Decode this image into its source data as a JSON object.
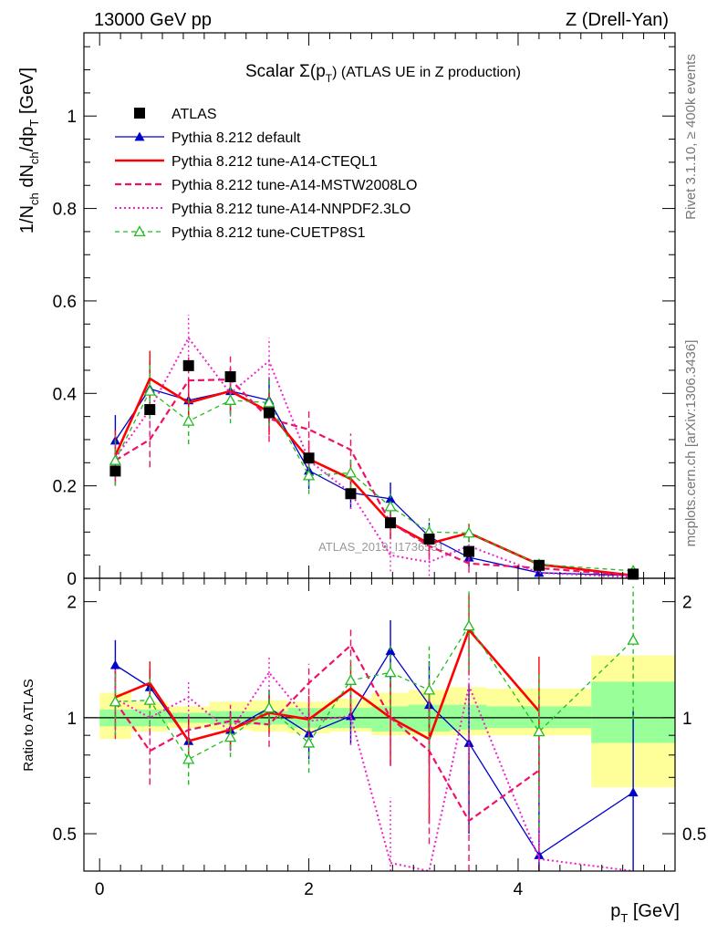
{
  "header": {
    "energy_label": "13000 GeV pp",
    "process_label": "Z (Drell-Yan)"
  },
  "side": {
    "rivet_label": "Rivet 3.1.10, ≥ 400k events",
    "mcplots_label": "mcplots.cern.ch [arXiv:1306.3436]"
  },
  "colors": {
    "atlas": "#000000",
    "default": "#0000cc",
    "a14_cteql1": "#ff0000",
    "a14_mstw": "#ee1166",
    "a14_nnpdf": "#ee22cc",
    "cuetp8s1": "#22bb22",
    "band_stat": "#99ff99",
    "band_total": "#ffff99"
  },
  "chart_data": [
    {
      "type": "line",
      "title_prefix": "Scalar Σ(p",
      "title_sub": "T",
      "title_suffix": ") (ATLAS UE in Z production)",
      "watermark": "ATLAS_2019_I1736531",
      "ylabel": "1/N_ch dN_ch/dp_T [GeV]",
      "ylabel_parts": [
        "1/N",
        "ch",
        " dN",
        "ch",
        "/dp",
        "T",
        " [GeV]"
      ],
      "xlim": [
        -0.15,
        5.5
      ],
      "ylim": [
        0,
        1.18
      ],
      "yticks": [
        0,
        0.2,
        0.4,
        0.6,
        0.8,
        1
      ],
      "ytick_labels": [
        "0",
        "0.2",
        "0.4",
        "0.6",
        "0.8",
        "1"
      ],
      "x": [
        0.15,
        0.48,
        0.85,
        1.25,
        1.62,
        2.0,
        2.4,
        2.78,
        3.15,
        3.53,
        4.2,
        5.1
      ],
      "bin_edges": [
        0.0,
        0.3,
        0.65,
        1.05,
        1.45,
        1.8,
        2.2,
        2.6,
        2.95,
        3.35,
        3.7,
        4.7,
        5.5
      ],
      "series": [
        {
          "name": "ATLAS",
          "key": "atlas",
          "values": [
            0.232,
            0.365,
            0.46,
            0.436,
            0.358,
            0.26,
            0.183,
            0.12,
            0.085,
            0.058,
            0.028,
            0.009
          ],
          "err": [
            0.01,
            0.01,
            0.01,
            0.01,
            0.01,
            0.01,
            0.01,
            0.01,
            0.01,
            0.008,
            0.005,
            0.003
          ]
        },
        {
          "name": "Pythia 8.212 default",
          "key": "default",
          "values": [
            0.298,
            0.41,
            0.385,
            0.405,
            0.385,
            0.233,
            0.185,
            0.172,
            0.09,
            0.045,
            0.012,
            0.006
          ],
          "err": [
            0.055,
            0.06,
            0.05,
            0.05,
            0.05,
            0.04,
            0.035,
            0.035,
            0.03,
            0.02,
            0.008,
            0.004
          ]
        },
        {
          "name": "Pythia 8.212 tune-A14-CTEQL1",
          "key": "a14_cteql1",
          "values": [
            0.265,
            0.432,
            0.38,
            0.405,
            0.36,
            0.258,
            0.215,
            0.12,
            0.075,
            0.098,
            0.03,
            0.006
          ],
          "err": [
            0.055,
            0.06,
            0.05,
            0.05,
            0.05,
            0.04,
            0.035,
            0.035,
            0.03,
            0.02,
            0.008,
            0.004
          ]
        },
        {
          "name": "Pythia 8.212 tune-A14-MSTW2008LO",
          "key": "a14_mstw",
          "values": [
            0.255,
            0.3,
            0.428,
            0.43,
            0.345,
            0.322,
            0.278,
            0.12,
            0.07,
            0.032,
            0.022,
            0.006
          ],
          "err": [
            0.055,
            0.06,
            0.05,
            0.05,
            0.05,
            0.04,
            0.035,
            0.035,
            0.03,
            0.02,
            0.008,
            0.004
          ]
        },
        {
          "name": "Pythia 8.212 tune-A14-NNPDF2.3LO",
          "key": "a14_nnpdf",
          "values": [
            0.26,
            0.365,
            0.52,
            0.4,
            0.47,
            0.255,
            0.185,
            0.05,
            0.035,
            0.07,
            0.012,
            0.002
          ],
          "err": [
            0.055,
            0.06,
            0.05,
            0.05,
            0.05,
            0.04,
            0.035,
            0.035,
            0.03,
            0.02,
            0.008,
            0.004
          ]
        },
        {
          "name": "Pythia 8.212 tune-CUETP8S1",
          "key": "cuetp8s1",
          "values": [
            0.255,
            0.405,
            0.34,
            0.385,
            0.38,
            0.222,
            0.228,
            0.155,
            0.1,
            0.098,
            0.03,
            0.016
          ],
          "err": [
            0.055,
            0.06,
            0.05,
            0.05,
            0.05,
            0.04,
            0.035,
            0.035,
            0.03,
            0.02,
            0.008,
            0.004
          ]
        }
      ]
    },
    {
      "type": "line",
      "ylabel": "Ratio to ATLAS",
      "xlabel_prefix": "p",
      "xlabel_sub": "T",
      "xlabel_suffix": " [GeV]",
      "xlim": [
        -0.15,
        5.5
      ],
      "ylim": [
        0.4,
        2.3
      ],
      "xticks": [
        0,
        2,
        4
      ],
      "xtick_labels": [
        "0",
        "2",
        "4"
      ],
      "yticks": [
        0.5,
        1,
        2
      ],
      "ytick_labels": [
        "0.5",
        "1",
        "2"
      ],
      "bands": {
        "stat": [
          [
            0.95,
            1.05
          ],
          [
            0.95,
            1.05
          ],
          [
            0.97,
            1.03
          ],
          [
            0.96,
            1.04
          ],
          [
            0.96,
            1.04
          ],
          [
            0.94,
            1.06
          ],
          [
            0.94,
            1.06
          ],
          [
            0.92,
            1.07
          ],
          [
            0.92,
            1.08
          ],
          [
            0.93,
            1.08
          ],
          [
            0.94,
            1.07
          ],
          [
            0.86,
            1.24
          ]
        ],
        "total": [
          [
            0.88,
            1.16
          ],
          [
            0.92,
            1.1
          ],
          [
            0.94,
            1.07
          ],
          [
            0.93,
            1.1
          ],
          [
            0.92,
            1.11
          ],
          [
            0.91,
            1.1
          ],
          [
            0.92,
            1.12
          ],
          [
            0.9,
            1.16
          ],
          [
            0.9,
            1.18
          ],
          [
            0.9,
            1.2
          ],
          [
            0.9,
            1.19
          ],
          [
            0.66,
            1.45
          ]
        ]
      },
      "series": [
        {
          "name": "Pythia 8.212 default",
          "key": "default",
          "values": [
            1.37,
            1.2,
            0.87,
            0.93,
            1.06,
            0.91,
            1.01,
            1.49,
            1.08,
            0.86,
            0.44,
            0.64
          ],
          "err": [
            0.22,
            0.14,
            0.12,
            0.11,
            0.12,
            0.13,
            0.16,
            0.3,
            0.32,
            0.36,
            0.4,
            0.4
          ]
        },
        {
          "name": "Pythia 8.212 tune-A14-CTEQL1",
          "key": "a14_cteql1",
          "values": [
            1.13,
            1.23,
            0.87,
            0.93,
            1.03,
            0.99,
            1.19,
            1.0,
            0.88,
            1.69,
            1.04,
            null
          ],
          "err": [
            0.2,
            0.17,
            0.11,
            0.1,
            0.12,
            0.15,
            0.18,
            0.25,
            0.35,
            0.4,
            0.4,
            0
          ]
        },
        {
          "name": "Pythia 8.212 tune-A14-MSTW2008LO",
          "key": "a14_mstw",
          "values": [
            1.1,
            0.82,
            0.93,
            0.98,
            0.96,
            1.23,
            1.54,
            1.0,
            0.82,
            0.54,
            0.73,
            null
          ],
          "err": [
            0.22,
            0.15,
            0.11,
            0.1,
            0.12,
            0.15,
            0.18,
            0.25,
            0.35,
            0.4,
            0.4,
            0
          ]
        },
        {
          "name": "Pythia 8.212 tune-A14-NNPDF2.3LO",
          "key": "a14_nnpdf",
          "values": [
            1.12,
            1.0,
            1.13,
            0.92,
            1.31,
            0.98,
            1.01,
            0.42,
            0.39,
            1.21,
            0.43,
            0.22
          ],
          "err": [
            0.22,
            0.15,
            0.12,
            0.1,
            0.14,
            0.13,
            0.16,
            0.2,
            0.3,
            0.4,
            0.4,
            0.2
          ]
        },
        {
          "name": "Pythia 8.212 tune-CUETP8S1",
          "key": "cuetp8s1",
          "values": [
            1.1,
            1.11,
            0.78,
            0.89,
            1.06,
            0.86,
            1.25,
            1.31,
            1.18,
            1.73,
            0.92,
            1.59
          ],
          "err": [
            0.2,
            0.15,
            0.11,
            0.1,
            0.12,
            0.14,
            0.16,
            0.25,
            0.35,
            0.4,
            0.4,
            0.6
          ]
        }
      ]
    }
  ]
}
